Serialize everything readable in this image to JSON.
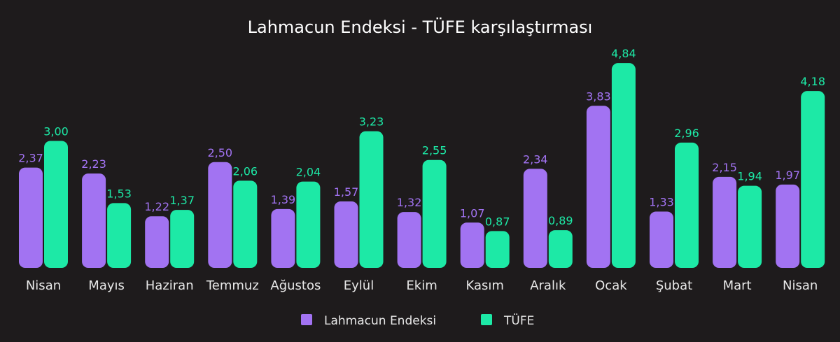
{
  "chart_data": {
    "type": "bar",
    "title": "Lahmacun Endeksi - TÜFE karşılaştırması",
    "categories": [
      "Nisan",
      "Mayıs",
      "Haziran",
      "Temmuz",
      "Ağustos",
      "Eylül",
      "Ekim",
      "Kasım",
      "Aralık",
      "Ocak",
      "Şubat",
      "Mart",
      "Nisan"
    ],
    "series": [
      {
        "name": "Lahmacun Endeksi",
        "color": "#a273f2",
        "values": [
          2.37,
          2.23,
          1.22,
          2.5,
          1.39,
          1.57,
          1.32,
          1.07,
          2.34,
          3.83,
          1.33,
          2.15,
          1.97
        ],
        "labels": [
          "2,37",
          "2,23",
          "1,22",
          "2,50",
          "1,39",
          "1,57",
          "1,32",
          "1,07",
          "2,34",
          "3,83",
          "1,33",
          "2,15",
          "1,97"
        ]
      },
      {
        "name": "TÜFE",
        "color": "#1de9a6",
        "values": [
          3.0,
          1.53,
          1.37,
          2.06,
          2.04,
          3.23,
          2.55,
          0.87,
          0.89,
          4.84,
          2.96,
          1.94,
          4.18
        ],
        "labels": [
          "3,00",
          "1,53",
          "1,37",
          "2,06",
          "2,04",
          "3,23",
          "2,55",
          "0,87",
          "0,89",
          "4,84",
          "2,96",
          "1,94",
          "4,18"
        ]
      }
    ],
    "legend": "bottom",
    "grid": false,
    "ylim": [
      0,
      5
    ]
  }
}
